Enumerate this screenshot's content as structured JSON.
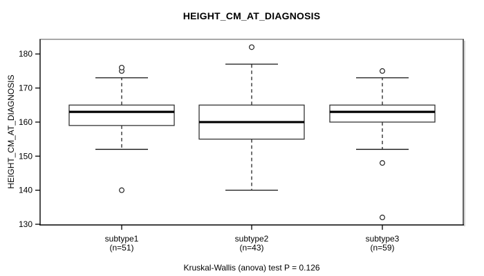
{
  "chart_data": {
    "type": "boxplot",
    "title": "HEIGHT_CM_AT_DIAGNOSIS",
    "ylabel": "HEIGHT_CM_AT_DIAGNOSIS",
    "xlabel": "",
    "caption": "Kruskal-Wallis (anova) test P = 0.126",
    "y_ticks": [
      130,
      140,
      150,
      160,
      170,
      180
    ],
    "ylim": [
      129.8,
      184.3
    ],
    "grid": false,
    "groups": [
      {
        "label": "subtype1",
        "n_label": "(n=51)",
        "n": 51,
        "whisker_low": 152,
        "q1": 159,
        "median": 163,
        "q3": 165,
        "whisker_high": 173,
        "outliers": [
          140,
          175,
          176
        ]
      },
      {
        "label": "subtype2",
        "n_label": "(n=43)",
        "n": 43,
        "whisker_low": 140,
        "q1": 155,
        "median": 160,
        "q3": 165,
        "whisker_high": 177,
        "outliers": [
          182
        ]
      },
      {
        "label": "subtype3",
        "n_label": "(n=59)",
        "n": 59,
        "whisker_low": 152,
        "q1": 160,
        "median": 163,
        "q3": 165,
        "whisker_high": 173,
        "outliers": [
          132,
          148,
          175
        ]
      }
    ],
    "colors": {
      "background": "#ffffff",
      "box_stroke": "#333333",
      "box_fill": "#ffffff",
      "median": "#000000",
      "whisker": "#111111",
      "outlier_stroke": "#222222",
      "frame_top": "#8a8a8a",
      "frame_right": "#2e2e2e",
      "frame_shadow": "#aaaaaa",
      "axis": "#000000",
      "text": "#000000"
    }
  }
}
